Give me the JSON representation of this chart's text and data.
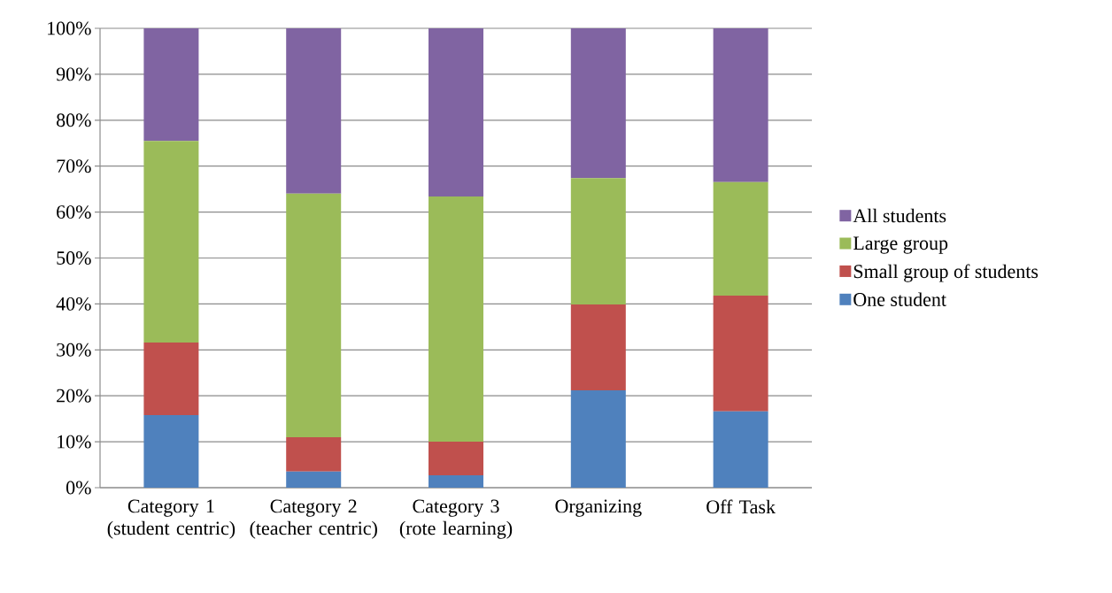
{
  "chart_data": {
    "type": "bar",
    "stacked": true,
    "categories": [
      "Category 1 (student centric)",
      "Category 2 (teacher centric)",
      "Category 3 (rote learning)",
      "Organizing",
      "Off Task"
    ],
    "series": [
      {
        "name": "One student",
        "color": "#4f81bd",
        "values": [
          15.8,
          3.5,
          2.7,
          21.2,
          16.6
        ]
      },
      {
        "name": "Small group of students",
        "color": "#c0504d",
        "values": [
          15.8,
          7.5,
          7.3,
          18.7,
          25.2
        ]
      },
      {
        "name": "Large group",
        "color": "#9bbb59",
        "values": [
          43.9,
          53.0,
          53.4,
          27.5,
          24.7
        ]
      },
      {
        "name": "All students",
        "color": "#8064a2",
        "values": [
          24.5,
          36.0,
          36.6,
          32.6,
          33.5
        ]
      }
    ],
    "ylim": [
      0,
      100
    ],
    "yticks": [
      {
        "value": 0,
        "label": "0%"
      },
      {
        "value": 10,
        "label": "10%"
      },
      {
        "value": 20,
        "label": "20%"
      },
      {
        "value": 30,
        "label": "30%"
      },
      {
        "value": 40,
        "label": "40%"
      },
      {
        "value": 50,
        "label": "50%"
      },
      {
        "value": 60,
        "label": "60%"
      },
      {
        "value": 70,
        "label": "70%"
      },
      {
        "value": 80,
        "label": "80%"
      },
      {
        "value": 90,
        "label": "90%"
      },
      {
        "value": 100,
        "label": "100%"
      }
    ],
    "grid": "y",
    "legend": "right"
  }
}
